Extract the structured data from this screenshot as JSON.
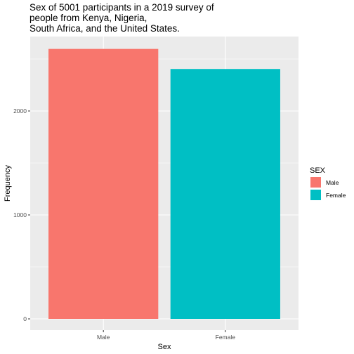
{
  "chart_data": {
    "type": "bar",
    "title_lines": [
      "Sex of 5001 participants in a 2019 survey of",
      "people from Kenya, Nigeria,",
      "South Africa, and the United States."
    ],
    "xlabel": "Sex",
    "ylabel": "Frequency",
    "categories": [
      "Male",
      "Female"
    ],
    "values": [
      2597,
      2404
    ],
    "colors": [
      "#F8766D",
      "#00BFC4"
    ],
    "ylim": [
      0,
      2750
    ],
    "y_ticks": [
      0,
      1000,
      2000
    ],
    "legend": {
      "title": "SEX",
      "position": "right",
      "entries": [
        "Male",
        "Female"
      ]
    },
    "grid": true,
    "panel_background": "#EBEBEB"
  }
}
